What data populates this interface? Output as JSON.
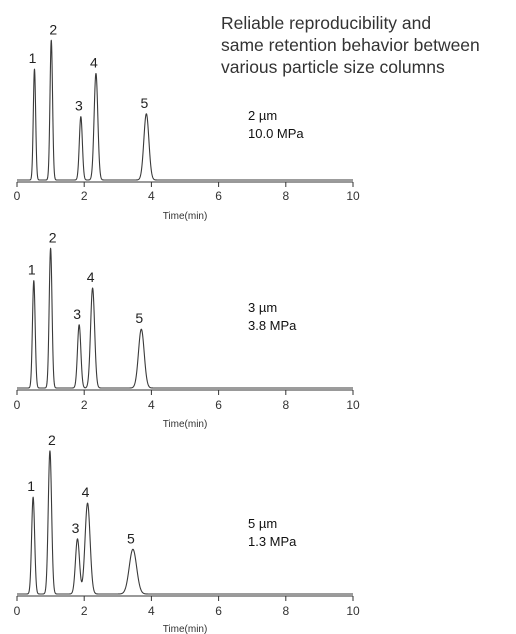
{
  "headline": [
    "Reliable reproducibility and",
    "same retention behavior between",
    "various particle size columns"
  ],
  "chart_data": [
    {
      "type": "line",
      "condition": [
        "2 µm",
        "10.0 MPa"
      ],
      "xlabel": "Time(min)",
      "xlim": [
        0,
        10
      ],
      "xticks": [
        0,
        2,
        4,
        6,
        8,
        10
      ],
      "peaks": [
        {
          "label": "1",
          "time": 0.52,
          "height": 0.77,
          "width": 0.035
        },
        {
          "label": "2",
          "time": 1.02,
          "height": 0.97,
          "width": 0.038
        },
        {
          "label": "3",
          "time": 1.9,
          "height": 0.44,
          "width": 0.045
        },
        {
          "label": "4",
          "time": 2.35,
          "height": 0.74,
          "width": 0.055
        },
        {
          "label": "5",
          "time": 3.85,
          "height": 0.46,
          "width": 0.075
        }
      ]
    },
    {
      "type": "line",
      "condition": [
        "3 µm",
        "3.8 MPa"
      ],
      "xlabel": "Time(min)",
      "xlim": [
        0,
        10
      ],
      "xticks": [
        0,
        2,
        4,
        6,
        8,
        10
      ],
      "peaks": [
        {
          "label": "1",
          "time": 0.5,
          "height": 0.73,
          "width": 0.04
        },
        {
          "label": "2",
          "time": 1.0,
          "height": 0.95,
          "width": 0.042
        },
        {
          "label": "3",
          "time": 1.85,
          "height": 0.43,
          "width": 0.05
        },
        {
          "label": "4",
          "time": 2.25,
          "height": 0.68,
          "width": 0.06
        },
        {
          "label": "5",
          "time": 3.7,
          "height": 0.4,
          "width": 0.085
        }
      ]
    },
    {
      "type": "line",
      "condition": [
        "5 µm",
        "1.3 MPa"
      ],
      "xlabel": "Time(min)",
      "xlim": [
        0,
        10
      ],
      "xticks": [
        0,
        2,
        4,
        6,
        8,
        10
      ],
      "peaks": [
        {
          "label": "1",
          "time": 0.48,
          "height": 0.65,
          "width": 0.045
        },
        {
          "label": "2",
          "time": 0.98,
          "height": 0.96,
          "width": 0.05
        },
        {
          "label": "3",
          "time": 1.8,
          "height": 0.37,
          "width": 0.06
        },
        {
          "label": "4",
          "time": 2.1,
          "height": 0.61,
          "width": 0.075
        },
        {
          "label": "5",
          "time": 3.45,
          "height": 0.3,
          "width": 0.11
        }
      ]
    }
  ]
}
